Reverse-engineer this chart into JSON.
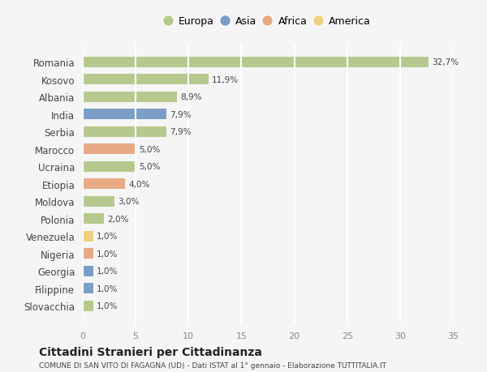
{
  "countries": [
    "Romania",
    "Kosovo",
    "Albania",
    "India",
    "Serbia",
    "Marocco",
    "Ucraina",
    "Etiopia",
    "Moldova",
    "Polonia",
    "Venezuela",
    "Nigeria",
    "Georgia",
    "Filippine",
    "Slovacchia"
  ],
  "values": [
    32.7,
    11.9,
    8.9,
    7.9,
    7.9,
    5.0,
    5.0,
    4.0,
    3.0,
    2.0,
    1.0,
    1.0,
    1.0,
    1.0,
    1.0
  ],
  "labels": [
    "32,7%",
    "11,9%",
    "8,9%",
    "7,9%",
    "7,9%",
    "5,0%",
    "5,0%",
    "4,0%",
    "3,0%",
    "2,0%",
    "1,0%",
    "1,0%",
    "1,0%",
    "1,0%",
    "1,0%"
  ],
  "continents": [
    "Europa",
    "Europa",
    "Europa",
    "Asia",
    "Europa",
    "Africa",
    "Europa",
    "Africa",
    "Europa",
    "Europa",
    "America",
    "Africa",
    "Asia",
    "Asia",
    "Europa"
  ],
  "colors": {
    "Europa": "#b5c98e",
    "Asia": "#7b9ec7",
    "Africa": "#e8aa85",
    "America": "#f0d080"
  },
  "legend_order": [
    "Europa",
    "Asia",
    "Africa",
    "America"
  ],
  "title": "Cittadini Stranieri per Cittadinanza",
  "subtitle": "COMUNE DI SAN VITO DI FAGAGNA (UD) - Dati ISTAT al 1° gennaio - Elaborazione TUTTITALIA.IT",
  "xlim": [
    0,
    35
  ],
  "xticks": [
    0,
    5,
    10,
    15,
    20,
    25,
    30,
    35
  ],
  "background_color": "#f5f5f5",
  "grid_color": "#ffffff",
  "bar_height": 0.6
}
